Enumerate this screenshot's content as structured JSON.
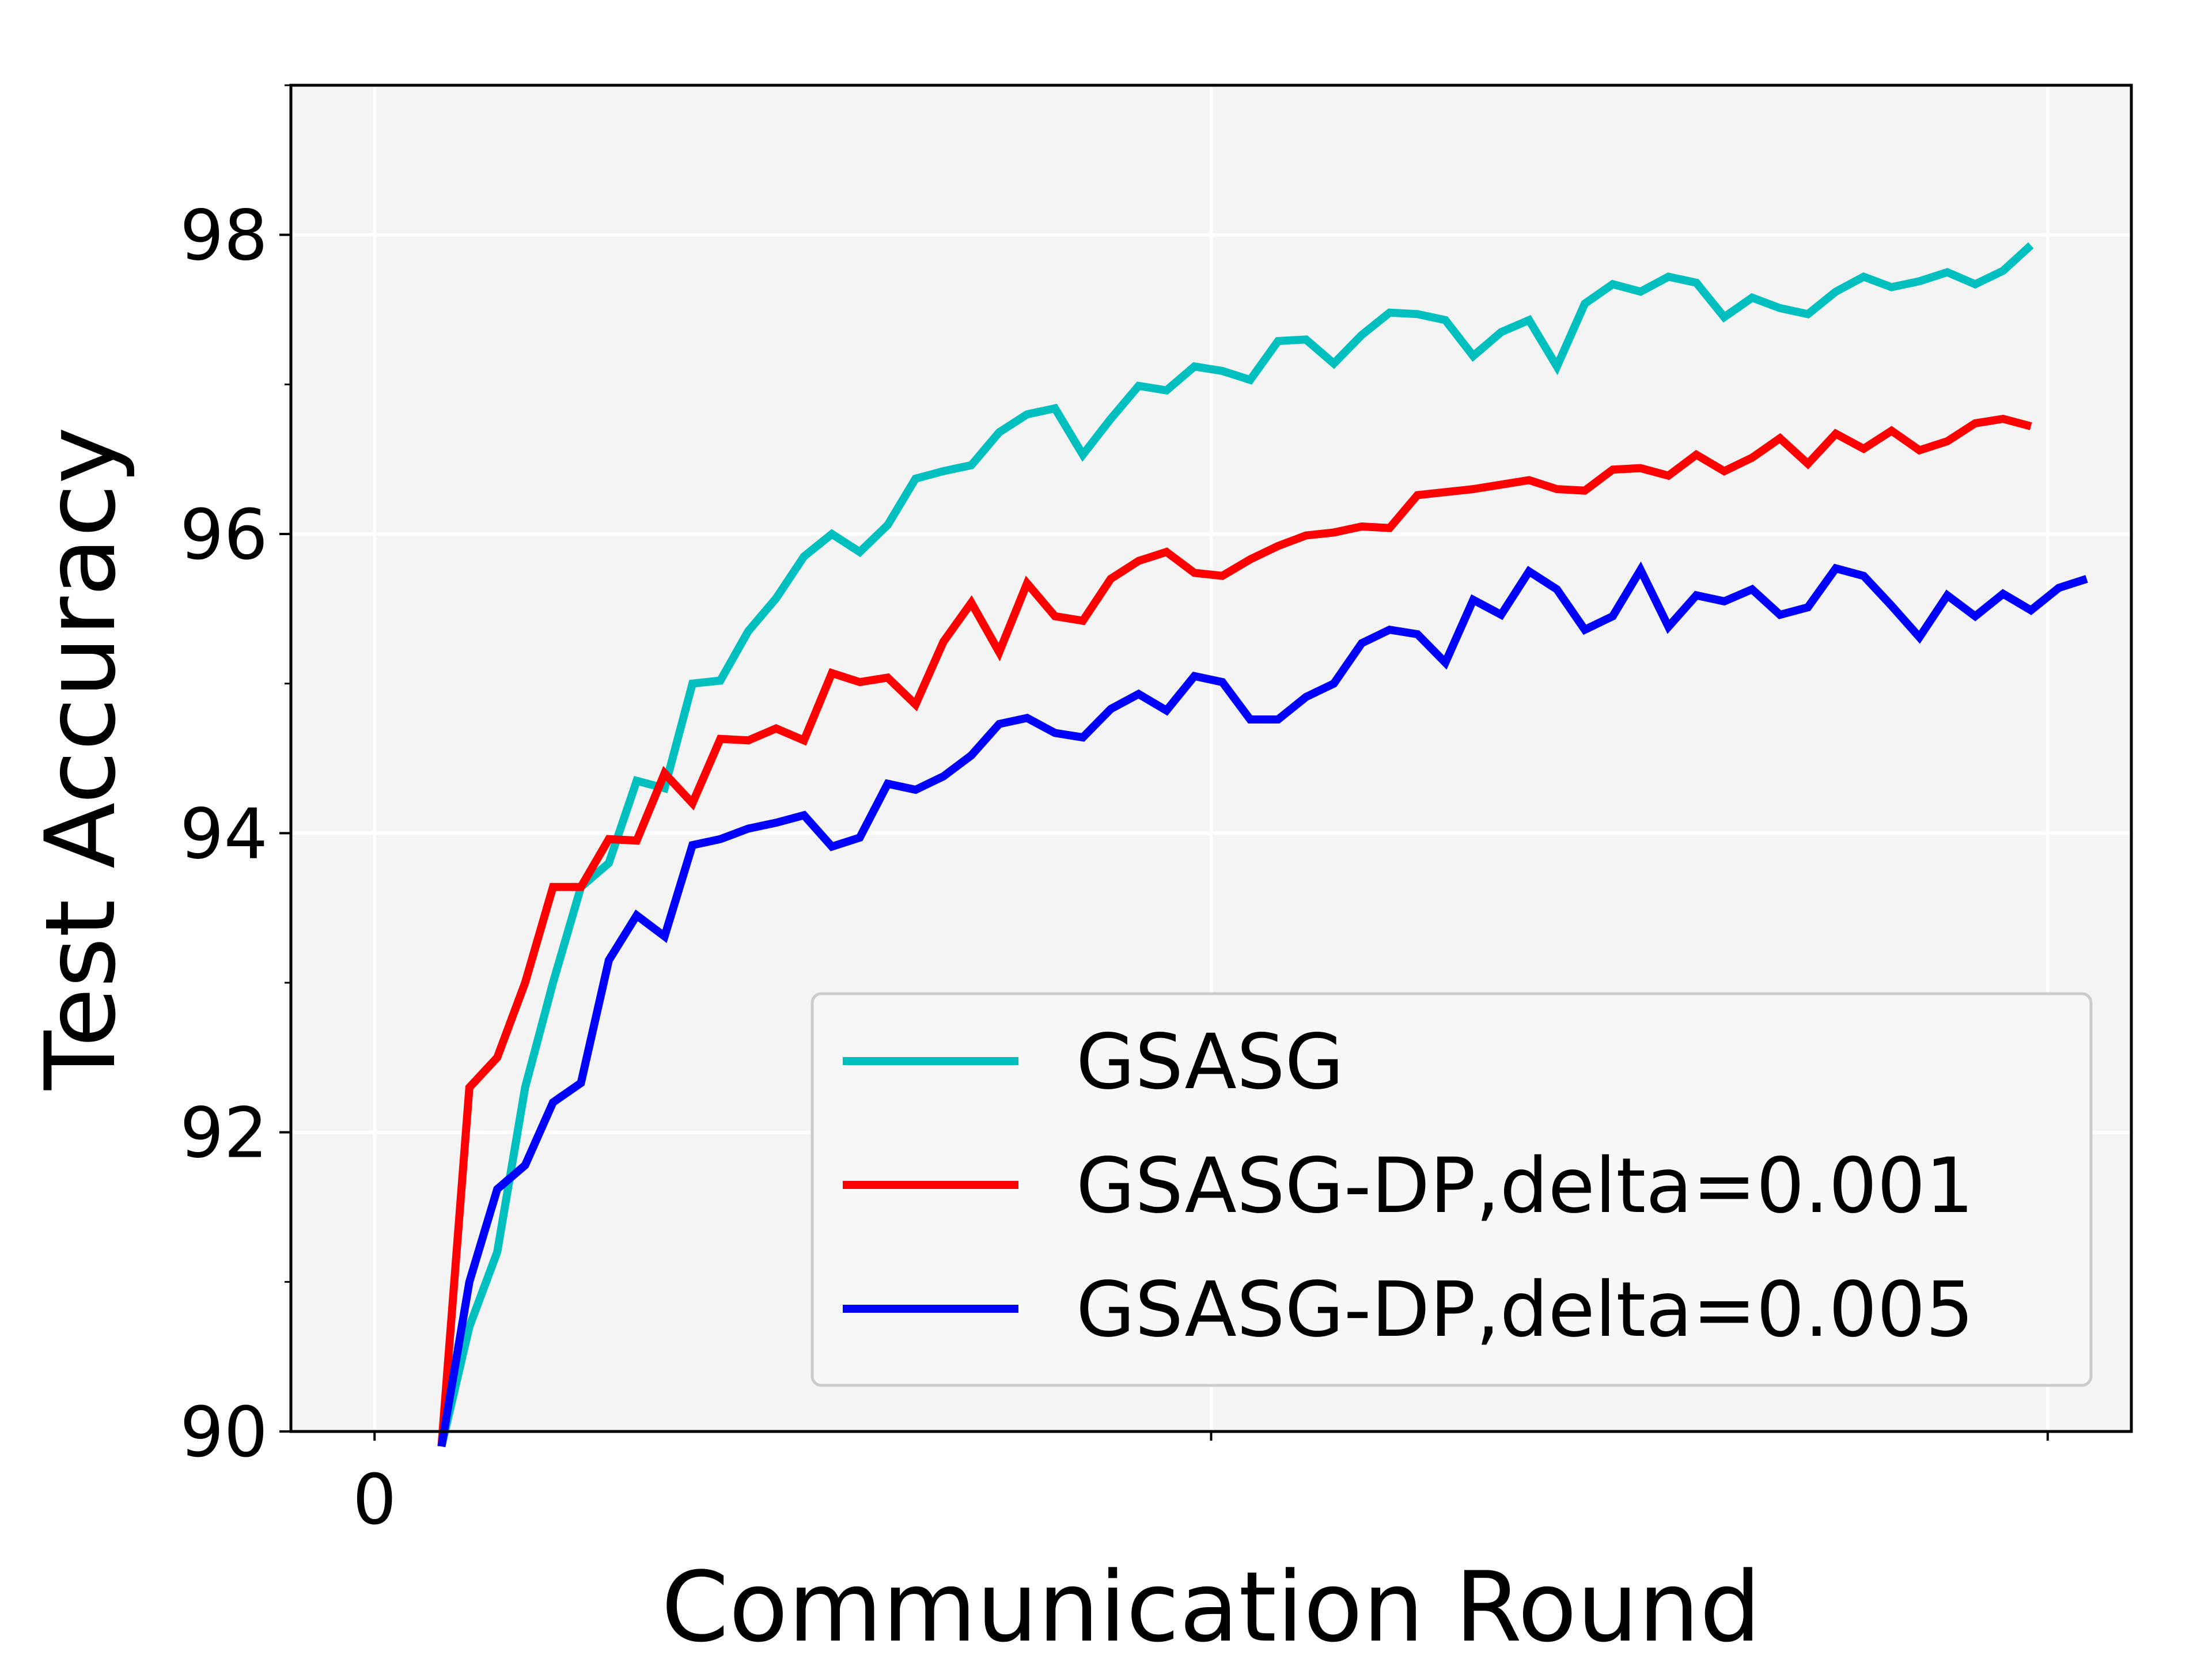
{
  "chart_data": {
    "type": "line",
    "title": "",
    "xlabel": "Communication Round",
    "ylabel": "Test Accuracy",
    "xlim": [
      -3,
      63
    ],
    "ylim": [
      90,
      99
    ],
    "x_ticks": [
      0,
      30,
      60
    ],
    "x_tick_labels": [
      "0",
      "",
      ""
    ],
    "y_ticks": [
      90,
      92,
      94,
      96,
      98
    ],
    "y_tick_labels": [
      "90",
      "92",
      "94",
      "96",
      "98"
    ],
    "y_minor_ticks": [
      91,
      93,
      95,
      97,
      99
    ],
    "grid": true,
    "legend_position": "lower-right",
    "background_color": "#f4f4f4",
    "series": [
      {
        "name": "GSASG",
        "color": "#00bfbf",
        "x": [
          2.4,
          3.4,
          4.4,
          5.4,
          6.4,
          7.4,
          8.4,
          9.4,
          10.4,
          11.4,
          12.4,
          13.4,
          14.4,
          15.4,
          16.4,
          17.4,
          18.4,
          19.4,
          20.4,
          21.4,
          22.4,
          23.4,
          24.4,
          25.4,
          26.4,
          27.4,
          28.4,
          29.4,
          30.4,
          31.4,
          32.4,
          33.4,
          34.4,
          35.4,
          36.4,
          37.4,
          38.4,
          39.4,
          40.4,
          41.4,
          42.4,
          43.4,
          44.4,
          45.4,
          46.4,
          47.4,
          48.4,
          49.4,
          50.4,
          51.4,
          52.4,
          53.4,
          54.4,
          55.4,
          56.4,
          57.4,
          58.4,
          59.4
        ],
        "y": [
          89.9,
          90.7,
          91.2,
          92.3,
          93.0,
          93.64,
          93.8,
          94.35,
          94.3,
          95.0,
          95.02,
          95.35,
          95.57,
          95.85,
          96.0,
          95.88,
          96.06,
          96.37,
          96.42,
          96.46,
          96.68,
          96.8,
          96.84,
          96.53,
          96.77,
          96.99,
          96.96,
          97.12,
          97.09,
          97.03,
          97.29,
          97.3,
          97.14,
          97.33,
          97.48,
          97.47,
          97.43,
          97.19,
          97.35,
          97.43,
          97.12,
          97.54,
          97.67,
          97.62,
          97.72,
          97.68,
          97.45,
          97.58,
          97.51,
          97.47,
          97.62,
          97.72,
          97.65,
          97.69,
          97.75,
          97.67,
          97.76,
          97.93
        ]
      },
      {
        "name": "GSASG-DP,delta=0.001",
        "color": "#ff0000",
        "x": [
          2.4,
          3.4,
          4.4,
          5.4,
          6.4,
          7.4,
          8.4,
          9.4,
          10.4,
          11.4,
          12.4,
          13.4,
          14.4,
          15.4,
          16.4,
          17.4,
          18.4,
          19.4,
          20.4,
          21.4,
          22.4,
          23.4,
          24.4,
          25.4,
          26.4,
          27.4,
          28.4,
          29.4,
          30.4,
          31.4,
          32.4,
          33.4,
          34.4,
          35.4,
          36.4,
          37.4,
          38.4,
          39.4,
          40.4,
          41.4,
          42.4,
          43.4,
          44.4,
          45.4,
          46.4,
          47.4,
          48.4,
          49.4,
          50.4,
          51.4,
          52.4,
          53.4,
          54.4,
          55.4,
          56.4,
          57.4,
          58.4,
          59.4
        ],
        "y": [
          89.9,
          92.3,
          92.5,
          93.0,
          93.64,
          93.64,
          93.96,
          93.95,
          94.4,
          94.2,
          94.63,
          94.62,
          94.7,
          94.62,
          95.07,
          95.01,
          95.04,
          94.86,
          95.28,
          95.54,
          95.21,
          95.67,
          95.45,
          95.42,
          95.7,
          95.82,
          95.88,
          95.74,
          95.72,
          95.83,
          95.92,
          95.99,
          96.01,
          96.05,
          96.04,
          96.26,
          96.28,
          96.3,
          96.33,
          96.36,
          96.3,
          96.29,
          96.43,
          96.44,
          96.39,
          96.53,
          96.42,
          96.51,
          96.64,
          96.47,
          96.67,
          96.57,
          96.69,
          96.56,
          96.62,
          96.74,
          96.77,
          96.72
        ]
      },
      {
        "name": "GSASG-DP,delta=0.005",
        "color": "#0000ff",
        "x": [
          2.4,
          3.4,
          4.4,
          5.4,
          6.4,
          7.4,
          8.4,
          9.4,
          10.4,
          11.4,
          12.4,
          13.4,
          14.4,
          15.4,
          16.4,
          17.4,
          18.4,
          19.4,
          20.4,
          21.4,
          22.4,
          23.4,
          24.4,
          25.4,
          26.4,
          27.4,
          28.4,
          29.4,
          30.4,
          31.4,
          32.4,
          33.4,
          34.4,
          35.4,
          36.4,
          37.4,
          38.4,
          39.4,
          40.4,
          41.4,
          42.4,
          43.4,
          44.4,
          45.4,
          46.4,
          47.4,
          48.4,
          49.4,
          50.4,
          51.4,
          52.4,
          53.4,
          54.4,
          55.4,
          56.4,
          57.4,
          58.4,
          59.4,
          60.4,
          61.4
        ],
        "y": [
          89.9,
          91.0,
          91.62,
          91.78,
          92.2,
          92.33,
          93.15,
          93.45,
          93.31,
          93.92,
          93.96,
          94.03,
          94.07,
          94.12,
          93.91,
          93.97,
          94.33,
          94.29,
          94.38,
          94.52,
          94.73,
          94.77,
          94.67,
          94.64,
          94.83,
          94.93,
          94.82,
          95.05,
          95.01,
          94.76,
          94.76,
          94.91,
          95.0,
          95.27,
          95.36,
          95.33,
          95.14,
          95.56,
          95.46,
          95.75,
          95.63,
          95.36,
          95.45,
          95.76,
          95.38,
          95.59,
          95.55,
          95.63,
          95.46,
          95.51,
          95.77,
          95.72,
          95.52,
          95.31,
          95.59,
          95.45,
          95.6,
          95.49,
          95.64,
          95.7
        ]
      }
    ]
  }
}
